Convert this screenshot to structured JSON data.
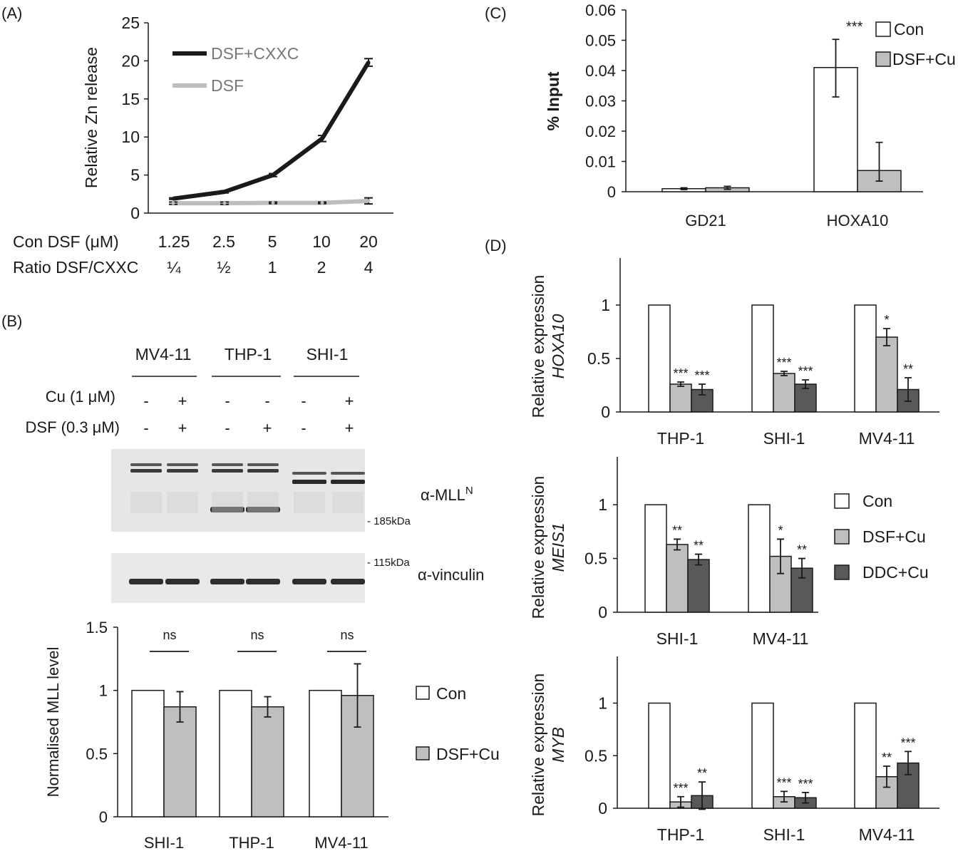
{
  "panel_labels": {
    "a": "(A)",
    "b": "(B)",
    "c": "(C)",
    "d": "(D)"
  },
  "colors": {
    "con": "#ffffff",
    "dsf_cu": "#bfbfbf",
    "ddc_cu": "#595959",
    "line_dark": "#1a1a1a",
    "line_light": "#bdbdbd",
    "axis": "#1a1a1a"
  },
  "chart_data": [
    {
      "id": "A",
      "type": "line",
      "ylabel": "Relative Zn release",
      "ylim": [
        0,
        25
      ],
      "yticks": [
        0,
        5,
        10,
        15,
        20,
        25
      ],
      "ytick_labels": [
        "0",
        "5",
        "10",
        "15",
        "20",
        "25"
      ],
      "row1_label": "Con DSF (μM)",
      "row1": [
        "1.25",
        "2.5",
        "5",
        "10",
        "20"
      ],
      "row2_label": "Ratio DSF/CXXC",
      "row2": [
        "¼",
        "½",
        "1",
        "2",
        "4"
      ],
      "legend_position": "top-left",
      "series": [
        {
          "name": "DSF+CXXC",
          "color": "#1a1a1a",
          "values": [
            1.9,
            2.8,
            5.0,
            9.8,
            19.8
          ],
          "errors": [
            0.1,
            0.15,
            0.2,
            0.4,
            0.5
          ]
        },
        {
          "name": "DSF",
          "color": "#bdbdbd",
          "values": [
            1.3,
            1.3,
            1.35,
            1.35,
            1.6
          ],
          "errors": [
            0.15,
            0.15,
            0.1,
            0.1,
            0.4
          ]
        }
      ]
    },
    {
      "id": "B",
      "type": "bar",
      "ylabel": "Normalised MLL level",
      "ylim": [
        0,
        1.5
      ],
      "yticks": [
        0,
        0.5,
        1,
        1.5
      ],
      "ytick_labels": [
        "0",
        "0.5",
        "1",
        "1.5"
      ],
      "categories": [
        "SHI-1",
        "THP-1",
        "MV4-11"
      ],
      "significance": [
        "ns",
        "ns",
        "ns"
      ],
      "series": [
        {
          "name": "Con",
          "color": "#ffffff",
          "values": [
            1,
            1,
            1
          ],
          "errors": [
            0,
            0,
            0
          ]
        },
        {
          "name": "DSF+Cu",
          "color": "#bfbfbf",
          "values": [
            0.87,
            0.87,
            0.96
          ],
          "errors": [
            0.12,
            0.08,
            0.25
          ]
        }
      ],
      "legend_position": "right"
    },
    {
      "id": "C",
      "type": "bar",
      "ylabel": "% Input",
      "ylim": [
        0,
        0.06
      ],
      "yticks": [
        0,
        0.01,
        0.02,
        0.03,
        0.04,
        0.05,
        0.06
      ],
      "ytick_labels": [
        "0",
        "0.01",
        "0.02",
        "0.03",
        "0.04",
        "0.05",
        "0.06"
      ],
      "categories": [
        "GD21",
        "HOXA10"
      ],
      "annotation": "***",
      "series": [
        {
          "name": "Con",
          "color": "#ffffff",
          "values": [
            0.001,
            0.041
          ],
          "errors_lo": [
            0.0003,
            0.0097
          ],
          "errors_hi": [
            0.0003,
            0.0093
          ]
        },
        {
          "name": "DSF+Cu",
          "color": "#bfbfbf",
          "values": [
            0.0013,
            0.007
          ],
          "errors_lo": [
            0.0005,
            0.0035
          ],
          "errors_hi": [
            0.0005,
            0.0093
          ]
        }
      ],
      "legend_position": "top-right"
    },
    {
      "id": "D1",
      "type": "bar",
      "ylabel_line1": "Relative expression",
      "ylabel_line2": "HOXA10",
      "ylim": [
        0,
        1.2
      ],
      "yticks": [
        0,
        0.5,
        1
      ],
      "ytick_labels": [
        "0",
        "0.5",
        "1"
      ],
      "categories": [
        "THP-1",
        "SHI-1",
        "MV4-11"
      ],
      "series": [
        {
          "name": "Con",
          "color": "#ffffff",
          "values": [
            1,
            1,
            1
          ],
          "errors": [
            0,
            0,
            0
          ],
          "stars": [
            "",
            "",
            ""
          ]
        },
        {
          "name": "DSF+Cu",
          "color": "#bfbfbf",
          "values": [
            0.26,
            0.36,
            0.7
          ],
          "errors": [
            0.02,
            0.02,
            0.08
          ],
          "stars": [
            "***",
            "***",
            "*"
          ]
        },
        {
          "name": "DDC+Cu",
          "color": "#595959",
          "values": [
            0.21,
            0.26,
            0.21
          ],
          "errors": [
            0.05,
            0.04,
            0.11
          ],
          "stars": [
            "***",
            "***",
            "**"
          ]
        }
      ]
    },
    {
      "id": "D2",
      "type": "bar",
      "ylabel_line1": "Relative expression",
      "ylabel_line2": "MEIS1",
      "ylim": [
        0,
        1.2
      ],
      "yticks": [
        0,
        0.5,
        1
      ],
      "ytick_labels": [
        "0",
        "0.5",
        "1"
      ],
      "categories": [
        "SHI-1",
        "MV4-11"
      ],
      "series": [
        {
          "name": "Con",
          "color": "#ffffff",
          "values": [
            1,
            1
          ],
          "errors": [
            0,
            0
          ],
          "stars": [
            "",
            ""
          ]
        },
        {
          "name": "DSF+Cu",
          "color": "#bfbfbf",
          "values": [
            0.63,
            0.52
          ],
          "errors": [
            0.05,
            0.16
          ],
          "stars": [
            "**",
            "*"
          ]
        },
        {
          "name": "DDC+Cu",
          "color": "#595959",
          "values": [
            0.49,
            0.41
          ],
          "errors": [
            0.05,
            0.09
          ],
          "stars": [
            "**",
            "**"
          ]
        }
      ],
      "legend_position": "right"
    },
    {
      "id": "D3",
      "type": "bar",
      "ylabel_line1": "Relative expression",
      "ylabel_line2": "MYB",
      "ylim": [
        0,
        1.2
      ],
      "yticks": [
        0,
        0.5,
        1
      ],
      "ytick_labels": [
        "0",
        "0.5",
        "1"
      ],
      "categories": [
        "THP-1",
        "SHI-1",
        "MV4-11"
      ],
      "series": [
        {
          "name": "Con",
          "color": "#ffffff",
          "values": [
            1,
            1,
            1
          ],
          "errors": [
            0,
            0,
            0
          ],
          "stars": [
            "",
            "",
            ""
          ]
        },
        {
          "name": "DSF+Cu",
          "color": "#bfbfbf",
          "values": [
            0.06,
            0.11,
            0.3
          ],
          "errors": [
            0.05,
            0.05,
            0.1
          ],
          "stars": [
            "***",
            "***",
            "**"
          ]
        },
        {
          "name": "DDC+Cu",
          "color": "#595959",
          "values": [
            0.12,
            0.1,
            0.43
          ],
          "errors": [
            0.13,
            0.05,
            0.11
          ],
          "stars": [
            "**",
            "***",
            "***"
          ]
        }
      ]
    }
  ],
  "blot": {
    "cell_lines": [
      "MV4-11",
      "THP-1",
      "SHI-1"
    ],
    "cu_label": "Cu (1 μM)",
    "dsf_label": "DSF (0.3 μM)",
    "cu_signs": [
      "-",
      "+",
      "-",
      "-",
      "-",
      "+"
    ],
    "dsf_signs": [
      "-",
      "+",
      "-",
      "+",
      "-",
      "+"
    ],
    "mll_label": "α-MLL",
    "mll_superscript": "N",
    "marker_185": "- 185kDa",
    "marker_115": "- 115kDa",
    "vinculin_label": "α-vinculin"
  }
}
